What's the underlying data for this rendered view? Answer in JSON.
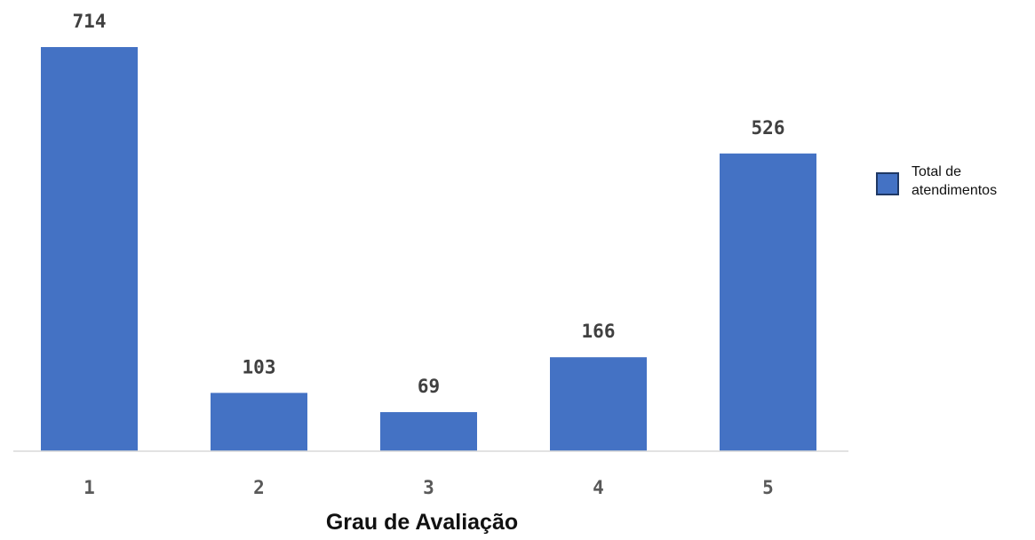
{
  "chart_data": {
    "type": "bar",
    "title": "",
    "xlabel": "Grau de Avaliação",
    "ylabel": "",
    "categories": [
      "1",
      "2",
      "3",
      "4",
      "5"
    ],
    "series": [
      {
        "name": "Total de atendimentos",
        "values": [
          714,
          103,
          69,
          166,
          526
        ],
        "color": "#4472c4"
      }
    ],
    "ylim": [
      0,
      714
    ],
    "grid": false,
    "legend": {
      "position": "right",
      "label_line1": "Total de",
      "label_line2": "atendimentos"
    },
    "data_labels": true
  }
}
